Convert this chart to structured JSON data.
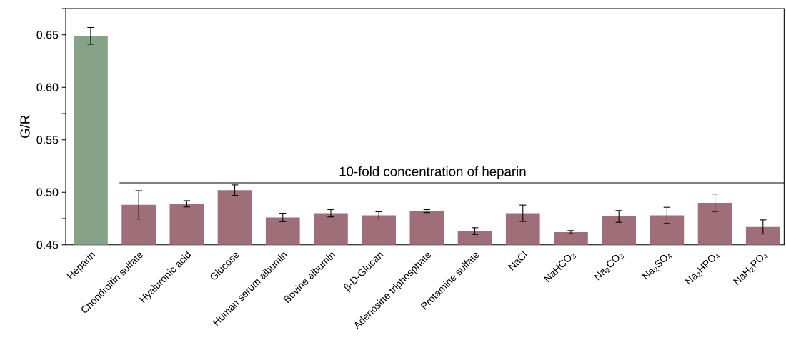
{
  "chart_data": {
    "type": "bar",
    "ylabel": "G/R",
    "categories": [
      "Heparin",
      "Chondroitin sulfate",
      "Hyaluronic acid",
      "Glucose",
      "Human serum albumin",
      "Bovine albumin",
      "β-D-Glucan",
      "Adenosine triphosphate",
      "Protamine sulfate",
      "NaCl",
      "NaHCO$_{3}$",
      "Na$_{2}$CO$_{3}$",
      "Na$_{2}$SO$_{4}$",
      "Na$_{2}$HPO$_{4}$",
      "NaH$_{2}$PO$_{4}$"
    ],
    "values": [
      0.649,
      0.488,
      0.489,
      0.502,
      0.476,
      0.48,
      0.478,
      0.482,
      0.463,
      0.48,
      0.462,
      0.477,
      0.478,
      0.49,
      0.467
    ],
    "errors": [
      0.008,
      0.0135,
      0.003,
      0.005,
      0.004,
      0.0035,
      0.0034,
      0.0014,
      0.0032,
      0.0078,
      0.0015,
      0.0056,
      0.0077,
      0.0083,
      0.0067
    ],
    "colors": [
      "#86a287",
      "#a06e78",
      "#a06e78",
      "#a06e78",
      "#a06e78",
      "#a06e78",
      "#a06e78",
      "#a06e78",
      "#a06e78",
      "#a06e78",
      "#a06e78",
      "#a06e78",
      "#a06e78",
      "#a06e78",
      "#a06e78"
    ],
    "ylim": [
      0.45,
      0.675
    ],
    "yticks": [
      0.45,
      {
        "value": 0.475,
        "label": null
      },
      {
        "value": 0.5,
        "label": "0.50"
      },
      {
        "value": 0.525,
        "label": null
      },
      0.55,
      {
        "value": 0.575,
        "label": null
      },
      {
        "value": 0.6,
        "label": "0.60"
      },
      {
        "value": 0.625,
        "label": null
      },
      0.65,
      {
        "value": 0.675,
        "label": null
      }
    ],
    "ref_lines": [
      {
        "axis": "y",
        "value": 0.509,
        "label": "10-fold concentration of heparin",
        "color": "#000000"
      }
    ],
    "grid": false
  }
}
